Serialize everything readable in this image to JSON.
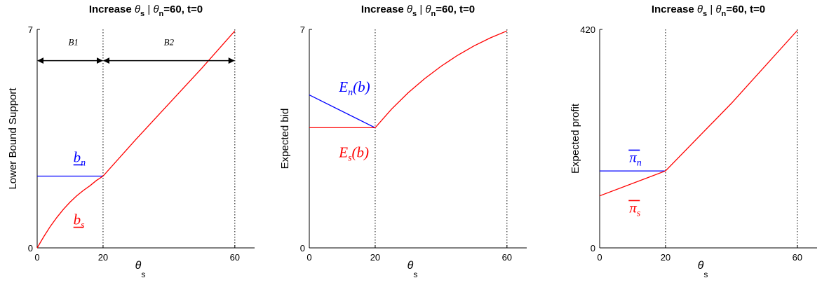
{
  "chart_data": [
    {
      "type": "line",
      "title": "Increase θ_s | θ_n=60, t=0",
      "title_parts": [
        "Increase ",
        "θ",
        "s",
        " | ",
        "θ",
        "n",
        "=60, t=0"
      ],
      "xlabel": "θ_s",
      "xlabel_main": "θ",
      "xlabel_sub": "s",
      "ylabel": "Lower Bound Support",
      "xlim": [
        0,
        66
      ],
      "ylim": [
        0,
        7
      ],
      "xticks": [
        "0",
        "20",
        "60"
      ],
      "yticks": [
        "0",
        "7"
      ],
      "xtick_values": [
        0,
        20,
        60
      ],
      "ytick_values": [
        0,
        7
      ],
      "vlines": [
        20,
        60
      ],
      "grid": false,
      "series": [
        {
          "key": "n",
          "color": "#0000ff",
          "x": [
            0,
            20
          ],
          "y": [
            2.3,
            2.3
          ]
        },
        {
          "key": "s",
          "color": "#ff0000",
          "x": [
            0,
            2,
            4,
            6,
            8,
            10,
            12,
            14,
            16,
            18,
            20,
            30,
            40,
            50,
            60
          ],
          "y": [
            0,
            0.36,
            0.69,
            0.98,
            1.24,
            1.47,
            1.67,
            1.84,
            1.99,
            2.16,
            2.3,
            3.48,
            4.62,
            5.76,
            6.95
          ]
        }
      ],
      "annotations": [
        {
          "key": "b_n",
          "base": "b",
          "sub": "n",
          "underline": true,
          "color": "#0000ff",
          "x": 11,
          "y": 2.75
        },
        {
          "key": "b_s",
          "base": "b",
          "sub": "s",
          "underline": true,
          "color": "#ff0000",
          "x": 11,
          "y": 0.75
        },
        {
          "key": "B1",
          "text": "B1",
          "color": "#000000",
          "x": 11,
          "y": 6.5
        },
        {
          "key": "B2",
          "text": "B2",
          "color": "#000000",
          "x": 40,
          "y": 6.5
        }
      ],
      "arrows": [
        {
          "key": "B1-arrow",
          "from": 0,
          "to": 20,
          "y": 6.0
        },
        {
          "key": "B2-arrow",
          "from": 20,
          "to": 60,
          "y": 6.0
        }
      ]
    },
    {
      "type": "line",
      "title": "Increase θ_s | θ_n=60, t=0",
      "title_parts": [
        "Increase ",
        "θ",
        "s",
        " | ",
        "θ",
        "n",
        "=60, t=0"
      ],
      "xlabel": "θ_s",
      "xlabel_main": "θ",
      "xlabel_sub": "s",
      "ylabel": "Expected bid",
      "xlim": [
        0,
        66
      ],
      "ylim": [
        0,
        7
      ],
      "xticks": [
        "0",
        "20",
        "60"
      ],
      "yticks": [
        "0",
        "7"
      ],
      "xtick_values": [
        0,
        20,
        60
      ],
      "ytick_values": [
        0,
        7
      ],
      "vlines": [
        20,
        60
      ],
      "grid": false,
      "series": [
        {
          "key": "n",
          "color": "#0000ff",
          "x": [
            0,
            20
          ],
          "y": [
            4.9,
            3.85
          ]
        },
        {
          "key": "s",
          "color": "#ff0000",
          "x": [
            0,
            20,
            25,
            30,
            35,
            40,
            45,
            50,
            55,
            60
          ],
          "y": [
            3.85,
            3.85,
            4.45,
            4.97,
            5.42,
            5.82,
            6.17,
            6.47,
            6.73,
            6.95
          ]
        }
      ],
      "annotations": [
        {
          "key": "E_n",
          "base": "E",
          "sub": "n",
          "tail": "(b)",
          "underline": false,
          "color": "#0000ff",
          "x": 9,
          "y": 5.0
        },
        {
          "key": "E_s",
          "base": "E",
          "sub": "s",
          "tail": "(b)",
          "underline": false,
          "color": "#ff0000",
          "x": 9,
          "y": 2.9
        }
      ]
    },
    {
      "type": "line",
      "title": "Increase θ_s | θ_n=60, t=0",
      "title_parts": [
        "Increase ",
        "θ",
        "s",
        " | ",
        "θ",
        "n",
        "=60, t=0"
      ],
      "xlabel": "θ_s",
      "xlabel_main": "θ",
      "xlabel_sub": "s",
      "ylabel": "Expected profit",
      "xlim": [
        0,
        66
      ],
      "ylim": [
        0,
        420
      ],
      "xticks": [
        "0",
        "20",
        "60"
      ],
      "yticks": [
        "0",
        "420"
      ],
      "xtick_values": [
        0,
        20,
        60
      ],
      "ytick_values": [
        0,
        420
      ],
      "vlines": [
        20,
        60
      ],
      "grid": false,
      "series": [
        {
          "key": "n",
          "color": "#0000ff",
          "x": [
            0,
            20
          ],
          "y": [
            148,
            148
          ]
        },
        {
          "key": "s",
          "color": "#ff0000",
          "x": [
            0,
            20,
            40,
            60
          ],
          "y": [
            100,
            148,
            278,
            418
          ]
        }
      ],
      "annotations": [
        {
          "key": "pi_n",
          "base": "π",
          "sub": "n",
          "overline": true,
          "color": "#0000ff",
          "x": 9,
          "y": 165
        },
        {
          "key": "pi_s",
          "base": "π",
          "sub": "s",
          "overline": true,
          "color": "#ff0000",
          "x": 9,
          "y": 68
        }
      ]
    }
  ]
}
